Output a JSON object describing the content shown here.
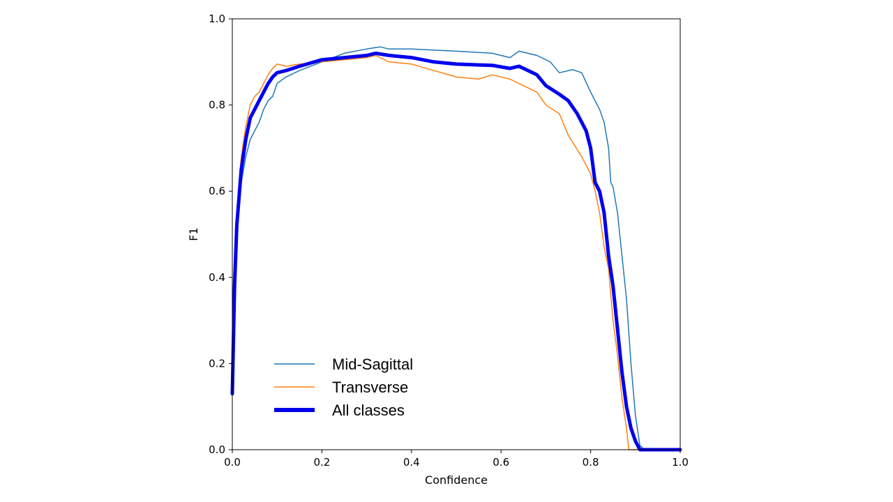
{
  "chart_data": {
    "type": "line",
    "title": "",
    "xlabel": "Confidence",
    "ylabel": "F1",
    "xlim": [
      0,
      1
    ],
    "ylim": [
      0,
      1
    ],
    "xticks": [
      "0.0",
      "0.2",
      "0.4",
      "0.6",
      "0.8",
      "1.0"
    ],
    "yticks": [
      "0.0",
      "0.2",
      "0.4",
      "0.6",
      "0.8",
      "1.0"
    ],
    "grid": false,
    "legend_position": "lower-left",
    "series": [
      {
        "name": "Mid-Sagittal",
        "color": "#1f77b4",
        "points": [
          [
            0.0,
            0.13
          ],
          [
            0.005,
            0.35
          ],
          [
            0.01,
            0.5
          ],
          [
            0.02,
            0.62
          ],
          [
            0.03,
            0.68
          ],
          [
            0.04,
            0.72
          ],
          [
            0.05,
            0.74
          ],
          [
            0.06,
            0.76
          ],
          [
            0.07,
            0.79
          ],
          [
            0.08,
            0.81
          ],
          [
            0.09,
            0.82
          ],
          [
            0.1,
            0.85
          ],
          [
            0.12,
            0.865
          ],
          [
            0.15,
            0.88
          ],
          [
            0.2,
            0.9
          ],
          [
            0.25,
            0.92
          ],
          [
            0.3,
            0.93
          ],
          [
            0.33,
            0.935
          ],
          [
            0.35,
            0.93
          ],
          [
            0.4,
            0.93
          ],
          [
            0.5,
            0.925
          ],
          [
            0.58,
            0.92
          ],
          [
            0.62,
            0.91
          ],
          [
            0.64,
            0.925
          ],
          [
            0.68,
            0.915
          ],
          [
            0.71,
            0.9
          ],
          [
            0.73,
            0.875
          ],
          [
            0.76,
            0.882
          ],
          [
            0.78,
            0.875
          ],
          [
            0.8,
            0.83
          ],
          [
            0.82,
            0.79
          ],
          [
            0.83,
            0.76
          ],
          [
            0.84,
            0.7
          ],
          [
            0.845,
            0.62
          ],
          [
            0.85,
            0.61
          ],
          [
            0.86,
            0.55
          ],
          [
            0.87,
            0.45
          ],
          [
            0.88,
            0.35
          ],
          [
            0.89,
            0.2
          ],
          [
            0.9,
            0.08
          ],
          [
            0.91,
            0.01
          ],
          [
            0.92,
            0.0
          ],
          [
            1.0,
            0.0
          ]
        ]
      },
      {
        "name": "Transverse",
        "color": "#ff7f0e",
        "points": [
          [
            0.0,
            0.13
          ],
          [
            0.005,
            0.4
          ],
          [
            0.01,
            0.55
          ],
          [
            0.02,
            0.68
          ],
          [
            0.03,
            0.75
          ],
          [
            0.04,
            0.8
          ],
          [
            0.05,
            0.82
          ],
          [
            0.06,
            0.83
          ],
          [
            0.07,
            0.85
          ],
          [
            0.08,
            0.87
          ],
          [
            0.09,
            0.885
          ],
          [
            0.1,
            0.895
          ],
          [
            0.12,
            0.89
          ],
          [
            0.15,
            0.895
          ],
          [
            0.2,
            0.9
          ],
          [
            0.25,
            0.905
          ],
          [
            0.3,
            0.91
          ],
          [
            0.32,
            0.915
          ],
          [
            0.35,
            0.9
          ],
          [
            0.4,
            0.895
          ],
          [
            0.45,
            0.88
          ],
          [
            0.5,
            0.865
          ],
          [
            0.55,
            0.86
          ],
          [
            0.58,
            0.87
          ],
          [
            0.62,
            0.86
          ],
          [
            0.64,
            0.85
          ],
          [
            0.68,
            0.83
          ],
          [
            0.7,
            0.8
          ],
          [
            0.73,
            0.78
          ],
          [
            0.75,
            0.73
          ],
          [
            0.78,
            0.68
          ],
          [
            0.8,
            0.64
          ],
          [
            0.81,
            0.6
          ],
          [
            0.82,
            0.55
          ],
          [
            0.83,
            0.47
          ],
          [
            0.84,
            0.42
          ],
          [
            0.85,
            0.3
          ],
          [
            0.86,
            0.22
          ],
          [
            0.87,
            0.12
          ],
          [
            0.88,
            0.05
          ],
          [
            0.885,
            0.0
          ],
          [
            1.0,
            0.0
          ]
        ]
      },
      {
        "name": "All classes",
        "color": "#0000ee",
        "points": [
          [
            0.0,
            0.13
          ],
          [
            0.005,
            0.38
          ],
          [
            0.01,
            0.52
          ],
          [
            0.02,
            0.65
          ],
          [
            0.03,
            0.72
          ],
          [
            0.04,
            0.77
          ],
          [
            0.05,
            0.79
          ],
          [
            0.06,
            0.81
          ],
          [
            0.07,
            0.83
          ],
          [
            0.08,
            0.85
          ],
          [
            0.09,
            0.865
          ],
          [
            0.1,
            0.875
          ],
          [
            0.12,
            0.88
          ],
          [
            0.15,
            0.89
          ],
          [
            0.2,
            0.905
          ],
          [
            0.25,
            0.91
          ],
          [
            0.3,
            0.915
          ],
          [
            0.32,
            0.92
          ],
          [
            0.35,
            0.915
          ],
          [
            0.4,
            0.91
          ],
          [
            0.45,
            0.9
          ],
          [
            0.5,
            0.895
          ],
          [
            0.55,
            0.893
          ],
          [
            0.58,
            0.892
          ],
          [
            0.62,
            0.885
          ],
          [
            0.64,
            0.89
          ],
          [
            0.68,
            0.87
          ],
          [
            0.7,
            0.845
          ],
          [
            0.73,
            0.825
          ],
          [
            0.75,
            0.81
          ],
          [
            0.77,
            0.78
          ],
          [
            0.79,
            0.74
          ],
          [
            0.8,
            0.7
          ],
          [
            0.81,
            0.62
          ],
          [
            0.82,
            0.6
          ],
          [
            0.83,
            0.55
          ],
          [
            0.84,
            0.45
          ],
          [
            0.85,
            0.38
          ],
          [
            0.86,
            0.28
          ],
          [
            0.87,
            0.18
          ],
          [
            0.88,
            0.1
          ],
          [
            0.89,
            0.05
          ],
          [
            0.9,
            0.02
          ],
          [
            0.91,
            0.0
          ],
          [
            1.0,
            0.0
          ]
        ]
      }
    ]
  }
}
